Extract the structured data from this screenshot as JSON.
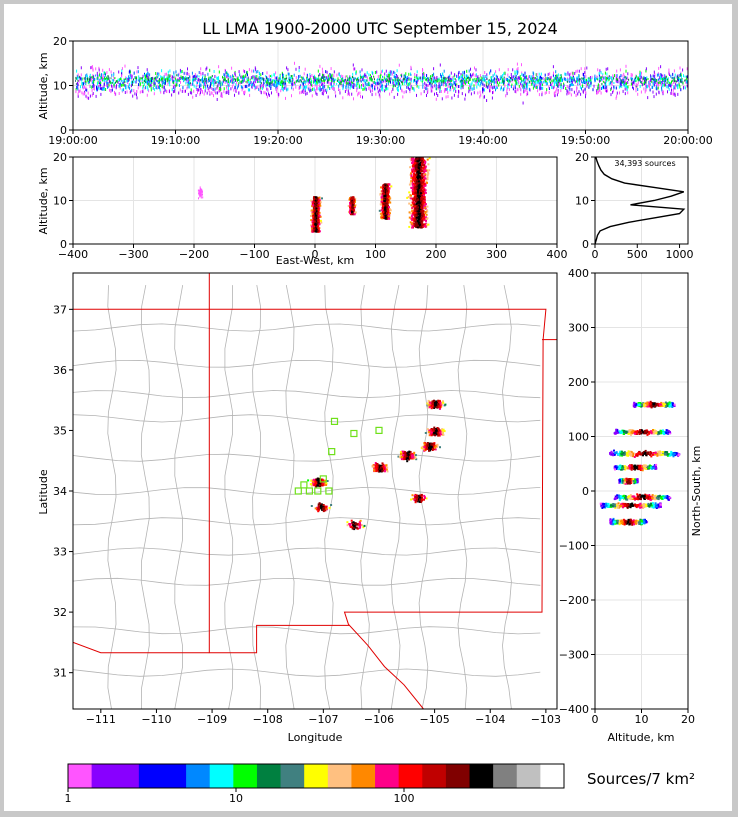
{
  "title": "LL LMA 1900-2000 UTC September 15, 2024",
  "colors": {
    "frame": "#c8c8c8",
    "border_red": "#e00000",
    "county": "#b4b4b4",
    "station": "#6fe01a",
    "profile": "#000000"
  },
  "panels": {
    "time_height": {
      "ylabel": "Altitude, km",
      "ylim": [
        0,
        20
      ],
      "yticks": [
        "0",
        "10",
        "20"
      ],
      "xticks": [
        "19:00:00",
        "19:10:00",
        "19:20:00",
        "19:30:00",
        "19:40:00",
        "19:50:00",
        "20:00:00"
      ]
    },
    "ew_height": {
      "ylabel": "Altitude, km",
      "xlabel": "East-West, km",
      "xlim": [
        -400,
        400
      ],
      "ylim": [
        0,
        20
      ],
      "xticks": [
        "−400",
        "−300",
        "−200",
        "−100",
        "0",
        "100",
        "200",
        "300",
        "400"
      ],
      "yticks": [
        "0",
        "10",
        "20"
      ]
    },
    "histogram": {
      "annotation": "34,393 sources",
      "xticks": [
        "0",
        "500",
        "1000"
      ],
      "yticks": [
        "0",
        "10",
        "20"
      ],
      "xlim": [
        0,
        1100
      ],
      "ylim": [
        0,
        20
      ]
    },
    "map": {
      "xlabel": "Longitude",
      "ylabel": "Latitude",
      "xlim": [
        -111.5,
        -102.8
      ],
      "ylim": [
        30.4,
        37.6
      ],
      "xticks": [
        "−111",
        "−110",
        "−109",
        "−108",
        "−107",
        "−106",
        "−105",
        "−104",
        "−103"
      ],
      "yticks": [
        "31",
        "32",
        "33",
        "34",
        "35",
        "36",
        "37"
      ]
    },
    "ns_height": {
      "xlabel": "Altitude, km",
      "ylabel": "North-South, km",
      "xlim": [
        0,
        20
      ],
      "ylim": [
        -400,
        400
      ],
      "xticks": [
        "0",
        "10",
        "20"
      ],
      "yticks": [
        "−400",
        "−300",
        "−200",
        "−100",
        "0",
        "100",
        "200",
        "300",
        "400"
      ]
    }
  },
  "colorbar": {
    "label": "Sources/7 km²",
    "ticks": [
      "1",
      "10",
      "100"
    ],
    "colors": [
      "#ff55ff",
      "#8800ff",
      "#8800ff",
      "#0000ff",
      "#0000ff",
      "#0088ff",
      "#00ffff",
      "#00ff00",
      "#008040",
      "#408080",
      "#ffff00",
      "#ffc080",
      "#ff8800",
      "#ff0088",
      "#ff0000",
      "#c00000",
      "#800000",
      "#000000",
      "#808080",
      "#c0c0c0",
      "#ffffff"
    ]
  },
  "chart_data": {
    "type": "heatmap",
    "description_free": true,
    "total_sources": 34393,
    "altitude_histogram": {
      "altitude_km": [
        0,
        1,
        2,
        3,
        4,
        5,
        6,
        7,
        8,
        9,
        10,
        11,
        12,
        13,
        14,
        15,
        16,
        17,
        18,
        19,
        20
      ],
      "sources": [
        0,
        15,
        30,
        60,
        180,
        400,
        700,
        1000,
        1050,
        420,
        700,
        900,
        1050,
        700,
        350,
        200,
        110,
        70,
        45,
        25,
        10
      ]
    },
    "ew_clusters_km": [
      {
        "x": 0,
        "alt_min": 3,
        "alt_max": 11
      },
      {
        "x": 60,
        "alt_min": 7,
        "alt_max": 11
      },
      {
        "x": 115,
        "alt_min": 6,
        "alt_max": 14
      },
      {
        "x": 170,
        "alt_min": 4,
        "alt_max": 20
      }
    ],
    "ns_clusters_km": [
      {
        "y": 160,
        "alt_min": 8,
        "alt_max": 17
      },
      {
        "y": 110,
        "alt_min": 4,
        "alt_max": 16
      },
      {
        "y": 70,
        "alt_min": 3,
        "alt_max": 18
      },
      {
        "y": 45,
        "alt_min": 4,
        "alt_max": 13
      },
      {
        "y": 20,
        "alt_min": 5,
        "alt_max": 9
      },
      {
        "y": -10,
        "alt_min": 4,
        "alt_max": 16
      },
      {
        "y": -25,
        "alt_min": 1,
        "alt_max": 14
      },
      {
        "y": -55,
        "alt_min": 3,
        "alt_max": 11
      }
    ],
    "map_clusters_deg": [
      {
        "lon": -105.0,
        "lat": 35.45
      },
      {
        "lon": -105.0,
        "lat": 35.0
      },
      {
        "lon": -105.1,
        "lat": 34.75
      },
      {
        "lon": -105.5,
        "lat": 34.6
      },
      {
        "lon": -106.0,
        "lat": 34.4
      },
      {
        "lon": -107.1,
        "lat": 34.15
      },
      {
        "lon": -107.05,
        "lat": 33.75
      },
      {
        "lon": -105.3,
        "lat": 33.9
      },
      {
        "lon": -106.45,
        "lat": 33.45
      }
    ],
    "lma_stations_deg": [
      {
        "lon": -106.8,
        "lat": 35.15
      },
      {
        "lon": -106.0,
        "lat": 35.0
      },
      {
        "lon": -106.45,
        "lat": 34.95
      },
      {
        "lon": -106.85,
        "lat": 34.65
      },
      {
        "lon": -107.35,
        "lat": 34.1
      },
      {
        "lon": -107.45,
        "lat": 34.0
      },
      {
        "lon": -107.25,
        "lat": 34.0
      },
      {
        "lon": -107.1,
        "lat": 34.0
      },
      {
        "lon": -106.9,
        "lat": 34.0
      },
      {
        "lon": -107.0,
        "lat": 34.2
      }
    ]
  }
}
